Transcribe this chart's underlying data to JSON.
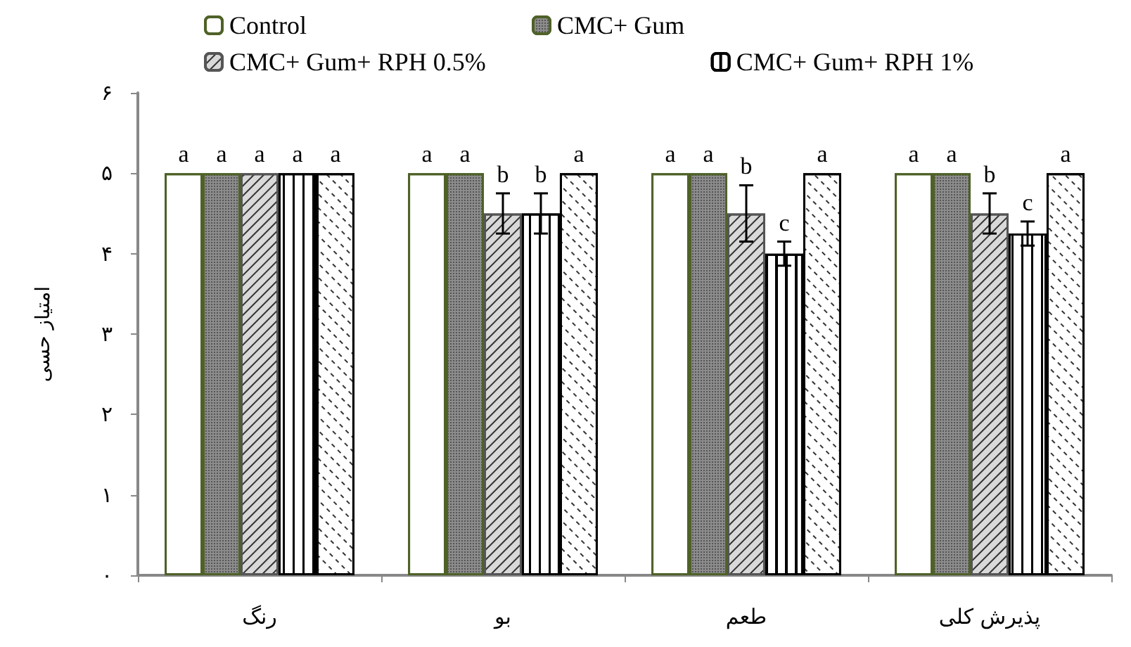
{
  "chart_data": {
    "type": "bar",
    "ylabel": "امتیاز حسی",
    "categories": [
      "رنگ",
      "بو",
      "طعم",
      "پذیرش کلی"
    ],
    "series": [
      {
        "name": "Control",
        "color": "#ffffff",
        "values": [
          5,
          5,
          5,
          5
        ],
        "value_labels": [
          "a",
          "a",
          "a",
          "a"
        ]
      },
      {
        "name": "CMC+ Gum",
        "color": "#8c8c8c",
        "values": [
          5,
          5,
          5,
          5
        ],
        "value_labels": [
          "a",
          "a",
          "a",
          "a"
        ]
      },
      {
        "name": "CMC+ Gum+ RPH 0.5%",
        "color": "#d9d9d9",
        "values": [
          5,
          4.5,
          4.5,
          4.5
        ],
        "errors": [
          null,
          0.25,
          0.35,
          0.25
        ],
        "value_labels": [
          "a",
          "b",
          "b",
          "b"
        ]
      },
      {
        "name": "CMC+ Gum+ RPH 1%",
        "color": "#ffffff",
        "values": [
          5,
          4.5,
          4,
          4.25
        ],
        "errors": [
          null,
          0.25,
          0.15,
          0.15
        ],
        "value_labels": [
          "a",
          "b",
          "c",
          "c"
        ]
      },
      {
        "color": "#ffffff",
        "values": [
          5,
          5,
          5,
          5
        ],
        "value_labels": [
          "a",
          "a",
          "a",
          "a"
        ]
      }
    ],
    "ylim": [
      0,
      6
    ],
    "yticks": [
      {
        "value": 0,
        "label": "۰"
      },
      {
        "value": 1,
        "label": "۱"
      },
      {
        "value": 2,
        "label": "۲"
      },
      {
        "value": 3,
        "label": "۳"
      },
      {
        "value": 4,
        "label": "۴"
      },
      {
        "value": 5,
        "label": "۵"
      },
      {
        "value": 6,
        "label": "۶"
      }
    ],
    "grid": false,
    "legend": "top"
  }
}
